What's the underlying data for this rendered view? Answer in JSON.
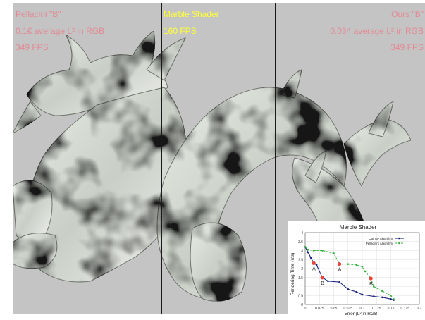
{
  "panels": {
    "left": {
      "title": "Pellacini \"B\"",
      "error": "0.1€ average L² in RGB",
      "fps": "349 FPS"
    },
    "middle": {
      "title": "Marble Shader",
      "fps": "160 FPS"
    },
    "right": {
      "title": "Ours \"B\"",
      "error": "0.034 average L² in RGB",
      "fps": "349 FPS"
    }
  },
  "colors": {
    "background": "#c4c4c4",
    "overlay_text": "#e28a96",
    "reference_text": "#ffff33",
    "ours_series": "#1a237e",
    "pellacini_series": "#3cb043",
    "point_marker": "#e8433a"
  },
  "chart_data": {
    "type": "line",
    "title": "Marble Shader",
    "xlabel": "Error (L² in RGB)",
    "ylabel": "Rendering Time (ms)",
    "xlim": [
      0,
      0.2
    ],
    "ylim": [
      0,
      4
    ],
    "xticks": [
      "0",
      "0.025",
      "0.05",
      "0.075",
      "0.1",
      "0.125",
      "0.15",
      "0.175",
      "0.2"
    ],
    "yticks": [
      "0",
      "0.5",
      "1",
      "1.5",
      "2",
      "2.5",
      "3",
      "3.5",
      "4"
    ],
    "legend_position": "top-right",
    "series": [
      {
        "name": "Our GP Algorithm",
        "style": "solid",
        "x": [
          0,
          0.005,
          0.01,
          0.015,
          0.02,
          0.03,
          0.04,
          0.06,
          0.075,
          0.09,
          0.1,
          0.12,
          0.135,
          0.15,
          0.155
        ],
        "y": [
          3.2,
          2.9,
          2.6,
          2.3,
          2.2,
          1.5,
          1.3,
          1.25,
          0.85,
          0.7,
          0.55,
          0.45,
          0.4,
          0.3,
          0.25
        ]
      },
      {
        "name": "Pellacini's Algorithm",
        "style": "dashed",
        "x": [
          0,
          0.005,
          0.015,
          0.03,
          0.05,
          0.06,
          0.075,
          0.09,
          0.1,
          0.105,
          0.115,
          0.12,
          0.135,
          0.15,
          0.155
        ],
        "y": [
          3.2,
          3.05,
          3.0,
          3.0,
          2.85,
          2.25,
          2.25,
          2.2,
          2.1,
          1.85,
          1.45,
          1.0,
          0.75,
          0.5,
          0.3
        ]
      }
    ],
    "annotations": [
      {
        "label": "A",
        "x": 0.015,
        "y": 2.3
      },
      {
        "label": "A",
        "x": 0.06,
        "y": 2.25
      },
      {
        "label": "B",
        "x": 0.03,
        "y": 1.5
      },
      {
        "label": "B",
        "x": 0.115,
        "y": 1.45
      }
    ]
  }
}
